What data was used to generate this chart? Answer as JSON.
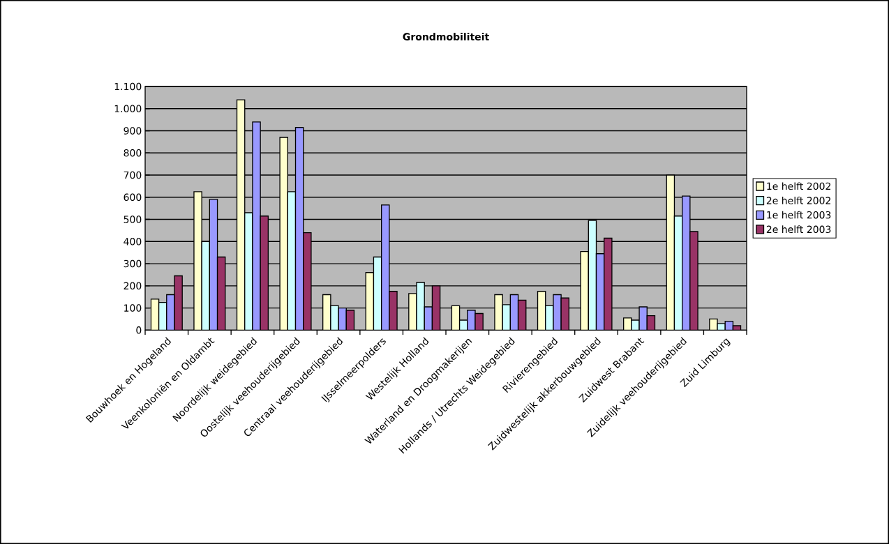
{
  "chart_data": {
    "type": "bar",
    "title": "Grondmobiliteit",
    "categories": [
      "Bouwhoek en Hogeland",
      "Veenkoloniën en Oldambt",
      "Noordelijk weidegebied",
      "Oostelijk veehouderijgebied",
      "Centraal veehouderijgebied",
      "IJsselmeerpolders",
      "Westelijk Holland",
      "Waterland en Droogmakerijen",
      "Hollands / Utrechts Weidegebied",
      "Rivierengebied",
      "Zuidwestelijk akkerbouwgebied",
      "Zuidwest Brabant",
      "Zuidelijk veehouderijgebied",
      "Zuid Limburg"
    ],
    "series": [
      {
        "name": "1e helft 2002",
        "color": "#ffffcc",
        "values": [
          140,
          625,
          1040,
          870,
          160,
          260,
          165,
          110,
          160,
          175,
          355,
          55,
          700,
          50
        ]
      },
      {
        "name": "2e helft 2002",
        "color": "#ccffff",
        "values": [
          125,
          400,
          530,
          625,
          110,
          330,
          215,
          45,
          115,
          110,
          495,
          45,
          515,
          30
        ]
      },
      {
        "name": "1e helft 2003",
        "color": "#9999ff",
        "values": [
          160,
          590,
          940,
          915,
          100,
          565,
          105,
          90,
          160,
          160,
          345,
          105,
          605,
          40
        ]
      },
      {
        "name": "2e helft 2003",
        "color": "#993366",
        "values": [
          245,
          330,
          515,
          440,
          90,
          175,
          200,
          75,
          135,
          145,
          415,
          65,
          445,
          20
        ]
      }
    ],
    "ylim": [
      0,
      1100
    ],
    "yticks": [
      0,
      100,
      200,
      300,
      400,
      500,
      600,
      700,
      800,
      900,
      {
        "value": 1000,
        "label": "1.000"
      },
      {
        "value": 1100,
        "label": "1.100"
      }
    ],
    "grid": "y",
    "legend": "right"
  }
}
